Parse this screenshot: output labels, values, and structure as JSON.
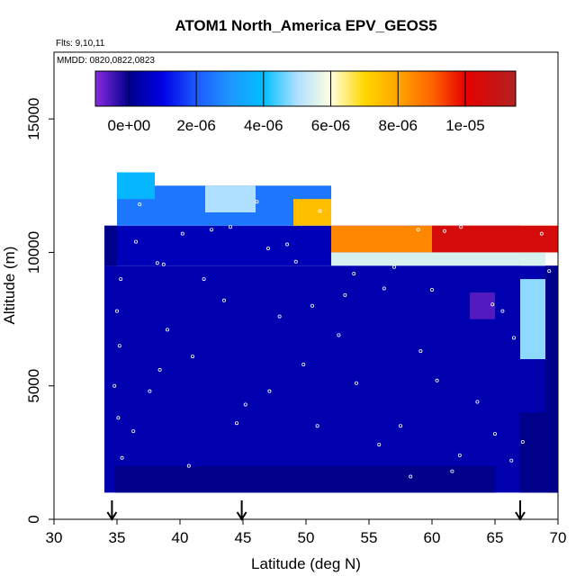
{
  "chart_data": {
    "type": "heatmap",
    "title": "ATOM1 North_America EPV_GEOS5",
    "annotations": [
      "Flts: 9,10,11",
      "MMDD: 0820,0822,0823"
    ],
    "xlabel": "Latitude (deg N)",
    "ylabel": "Altitude (m)",
    "xlim": [
      30,
      70
    ],
    "ylim": [
      0,
      17500
    ],
    "x_ticks": [
      30,
      35,
      40,
      45,
      50,
      55,
      60,
      65,
      70
    ],
    "x_tick_labels": [
      "30",
      "35",
      "40",
      "45",
      "50",
      "55",
      "60",
      "65",
      "70"
    ],
    "y_ticks": [
      0,
      5000,
      10000,
      15000
    ],
    "y_tick_labels": [
      "0",
      "5000",
      "10000",
      "15000"
    ],
    "grid": false,
    "colorbar": {
      "range": [
        -1e-06,
        1.15e-05
      ],
      "ticks": [
        0,
        2e-06,
        4e-06,
        6e-06,
        8e-06,
        1e-05
      ],
      "tick_labels": [
        "0e+00",
        "2e-06",
        "4e-06",
        "6e-06",
        "8e-06",
        "1e-05"
      ],
      "stops": [
        {
          "v": -1e-06,
          "color": "#8a2be2"
        },
        {
          "v": 0,
          "color": "#00008b"
        },
        {
          "v": 1e-06,
          "color": "#0000e6"
        },
        {
          "v": 2e-06,
          "color": "#1e5aff"
        },
        {
          "v": 3e-06,
          "color": "#1e96ff"
        },
        {
          "v": 4e-06,
          "color": "#00bfff"
        },
        {
          "v": 5e-06,
          "color": "#b0e0ff"
        },
        {
          "v": 6e-06,
          "color": "#ffffe0"
        },
        {
          "v": 7e-06,
          "color": "#ffd700"
        },
        {
          "v": 8e-06,
          "color": "#ffa500"
        },
        {
          "v": 9e-06,
          "color": "#ff6600"
        },
        {
          "v": 1e-05,
          "color": "#e60000"
        },
        {
          "v": 1.15e-05,
          "color": "#b22222"
        }
      ]
    },
    "flight_arrows_lat": [
      34.6,
      44.9,
      67.0
    ],
    "regions": [
      {
        "x0": 34,
        "x1": 70,
        "y0": 1000,
        "y1": 9500,
        "value": 4e-07
      },
      {
        "x0": 34.8,
        "x1": 65,
        "y0": 1000,
        "y1": 2000,
        "value": 0
      },
      {
        "x0": 67,
        "x1": 70,
        "y0": 1000,
        "y1": 4000,
        "value": 0
      },
      {
        "x0": 69,
        "x1": 70,
        "y0": 1000,
        "y1": 9500,
        "value": 0
      },
      {
        "x0": 34,
        "x1": 67,
        "y0": 9500,
        "y1": 11000,
        "value": 5e-07
      },
      {
        "x0": 35,
        "x1": 52,
        "y0": 11000,
        "y1": 12500,
        "value": 2.5e-06
      },
      {
        "x0": 35,
        "x1": 38,
        "y0": 12000,
        "y1": 13000,
        "value": 3.8e-06
      },
      {
        "x0": 42,
        "x1": 46,
        "y0": 11500,
        "y1": 12500,
        "value": 5e-06
      },
      {
        "x0": 49,
        "x1": 52,
        "y0": 11000,
        "y1": 12000,
        "value": 7.5e-06
      },
      {
        "x0": 52,
        "x1": 70,
        "y0": 10000,
        "y1": 11000,
        "value": 8.5e-06
      },
      {
        "x0": 60,
        "x1": 70,
        "y0": 10000,
        "y1": 11000,
        "value": 1.05e-05
      },
      {
        "x0": 52,
        "x1": 69,
        "y0": 9500,
        "y1": 10000,
        "value": 5.5e-06
      },
      {
        "x0": 63,
        "x1": 65,
        "y0": 7500,
        "y1": 8500,
        "value": -6e-07
      },
      {
        "x0": 67,
        "x1": 69,
        "y0": 6000,
        "y1": 9000,
        "value": 4.8e-06
      },
      {
        "x0": 34,
        "x1": 35,
        "y0": 9500,
        "y1": 11000,
        "value": 0
      }
    ],
    "points": [
      {
        "x": 35.3,
        "y": 9000
      },
      {
        "x": 35.0,
        "y": 7800
      },
      {
        "x": 35.2,
        "y": 6500
      },
      {
        "x": 34.8,
        "y": 5000
      },
      {
        "x": 35.1,
        "y": 3800
      },
      {
        "x": 35.4,
        "y": 2300
      },
      {
        "x": 36.5,
        "y": 10400
      },
      {
        "x": 36.8,
        "y": 11800
      },
      {
        "x": 38.2,
        "y": 9600
      },
      {
        "x": 38.7,
        "y": 9550
      },
      {
        "x": 40.2,
        "y": 10700
      },
      {
        "x": 42.5,
        "y": 10850
      },
      {
        "x": 46.1,
        "y": 11900
      },
      {
        "x": 47.0,
        "y": 10150
      },
      {
        "x": 49.2,
        "y": 9650
      },
      {
        "x": 51.1,
        "y": 11550
      },
      {
        "x": 53.8,
        "y": 9200
      },
      {
        "x": 56.2,
        "y": 8650
      },
      {
        "x": 58.9,
        "y": 10850
      },
      {
        "x": 61.0,
        "y": 10800
      },
      {
        "x": 62.3,
        "y": 10950
      },
      {
        "x": 64.8,
        "y": 8050
      },
      {
        "x": 65.6,
        "y": 7800
      },
      {
        "x": 66.5,
        "y": 6800
      },
      {
        "x": 68.7,
        "y": 10700
      },
      {
        "x": 69.3,
        "y": 9300
      },
      {
        "x": 39.0,
        "y": 7100
      },
      {
        "x": 41.0,
        "y": 6100
      },
      {
        "x": 43.5,
        "y": 8200
      },
      {
        "x": 45.2,
        "y": 4300
      },
      {
        "x": 47.9,
        "y": 7600
      },
      {
        "x": 49.8,
        "y": 5800
      },
      {
        "x": 52.6,
        "y": 6900
      },
      {
        "x": 54.0,
        "y": 5100
      },
      {
        "x": 55.8,
        "y": 2800
      },
      {
        "x": 57.5,
        "y": 3500
      },
      {
        "x": 59.1,
        "y": 6300
      },
      {
        "x": 60.4,
        "y": 5200
      },
      {
        "x": 62.2,
        "y": 2400
      },
      {
        "x": 63.6,
        "y": 4400
      },
      {
        "x": 65.0,
        "y": 3200
      },
      {
        "x": 66.3,
        "y": 2200
      },
      {
        "x": 67.2,
        "y": 2900
      },
      {
        "x": 64.9,
        "y": 700
      },
      {
        "x": 61.6,
        "y": 1800
      },
      {
        "x": 50.9,
        "y": 3500
      },
      {
        "x": 47.1,
        "y": 4800
      },
      {
        "x": 37.6,
        "y": 4800
      },
      {
        "x": 36.3,
        "y": 3300
      },
      {
        "x": 44.5,
        "y": 3600
      },
      {
        "x": 58.3,
        "y": 1600
      },
      {
        "x": 40.7,
        "y": 2000
      },
      {
        "x": 38.4,
        "y": 5600
      },
      {
        "x": 53.1,
        "y": 8400
      },
      {
        "x": 57.0,
        "y": 9450
      },
      {
        "x": 60.0,
        "y": 8600
      },
      {
        "x": 48.5,
        "y": 10300
      },
      {
        "x": 44.0,
        "y": 10950
      },
      {
        "x": 41.9,
        "y": 9000
      },
      {
        "x": 50.5,
        "y": 8000
      }
    ]
  }
}
